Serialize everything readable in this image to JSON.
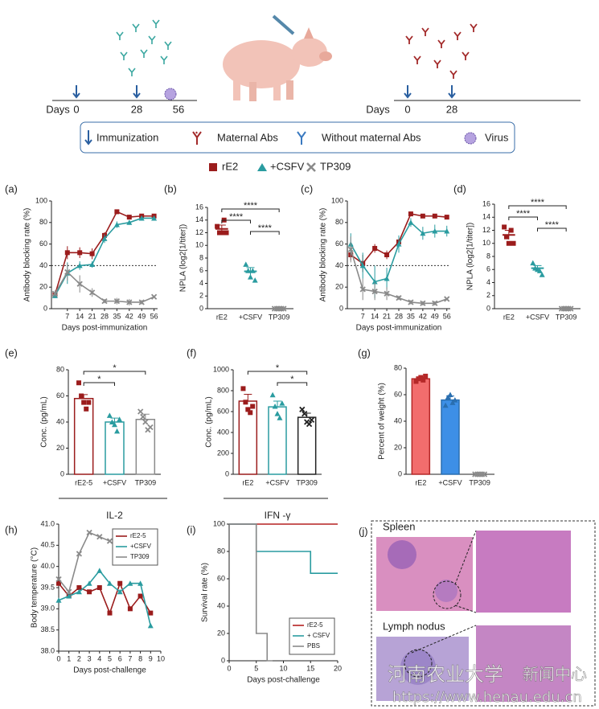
{
  "schematic": {
    "left_axis": [
      "Days",
      "0",
      "28",
      "56"
    ],
    "right_axis": [
      "Days",
      "0",
      "28"
    ],
    "legend": [
      "Immunization",
      "Maternal Abs",
      "Without maternal Abs",
      "Virus"
    ],
    "groups": [
      "rE2",
      "+CSFV",
      "TP309"
    ],
    "group_colors": [
      "#9b1c1c",
      "#2a9ca0",
      "#8a8a8a"
    ]
  },
  "chart_data": [
    {
      "type": "line",
      "panel": "(a)",
      "x": [
        0,
        7,
        14,
        21,
        28,
        35,
        42,
        49,
        56
      ],
      "xlim": [
        -2,
        58
      ],
      "xticks": [
        7,
        14,
        21,
        28,
        35,
        42,
        49,
        56
      ],
      "ylim": [
        0,
        100
      ],
      "yticks": [
        0,
        20,
        40,
        60,
        80,
        100
      ],
      "xlabel": "Days post-immunization",
      "ylabel": "Antibody blocking rate (%)",
      "reference_line": 40,
      "series": [
        {
          "color": "#9b1c1c",
          "values": [
            13,
            52,
            52,
            51,
            68,
            90,
            85,
            86,
            86
          ],
          "errors": [
            2,
            6,
            5,
            5,
            3,
            1,
            2,
            2,
            2
          ]
        },
        {
          "color": "#2a9ca0",
          "values": [
            12,
            33,
            40,
            41,
            65,
            78,
            80,
            84,
            84
          ],
          "errors": [
            2,
            10,
            4,
            3,
            4,
            3,
            2,
            2,
            2
          ]
        },
        {
          "color": "#8a8a8a",
          "values": [
            14,
            34,
            23,
            15,
            7,
            7,
            6,
            6,
            11
          ],
          "errors": [
            3,
            8,
            8,
            4,
            2,
            3,
            3,
            2,
            1
          ]
        }
      ]
    },
    {
      "type": "dot",
      "panel": "(b)",
      "categories": [
        "rE2",
        "+CSFV",
        "TP309"
      ],
      "values": [
        12.6,
        5.9,
        0
      ],
      "errors": [
        0.6,
        0.6,
        0
      ],
      "points": [
        [
          13,
          12,
          12,
          14,
          12
        ],
        [
          7,
          6,
          5,
          6,
          4.5
        ],
        [
          0,
          0,
          0,
          0,
          0
        ]
      ],
      "colors": [
        "#9b1c1c",
        "#2a9ca0",
        "#8a8a8a"
      ],
      "ylim": [
        0,
        16
      ],
      "yticks": [
        0,
        2,
        4,
        6,
        8,
        10,
        12,
        14,
        16
      ],
      "ylabel": "NPLA (log2[1/titer])",
      "significance": [
        "****",
        "****",
        "****"
      ]
    },
    {
      "type": "line",
      "panel": "(c)",
      "x": [
        0,
        7,
        14,
        21,
        28,
        35,
        42,
        49,
        56
      ],
      "xlim": [
        -2,
        58
      ],
      "xticks": [
        7,
        14,
        21,
        28,
        35,
        42,
        49,
        56
      ],
      "ylim": [
        0,
        100
      ],
      "yticks": [
        0,
        20,
        40,
        60,
        80,
        100
      ],
      "xlabel": "Days post-immunization",
      "ylabel": "Antibody blocking rate (%)",
      "reference_line": 40,
      "series": [
        {
          "color": "#9b1c1c",
          "values": [
            50,
            42,
            56,
            50,
            62,
            88,
            86,
            86,
            85
          ],
          "errors": [
            5,
            8,
            4,
            4,
            4,
            1,
            1,
            1,
            2
          ]
        },
        {
          "color": "#2a9ca0",
          "values": [
            60,
            40,
            25,
            28,
            60,
            80,
            70,
            72,
            72
          ],
          "errors": [
            10,
            12,
            15,
            10,
            8,
            4,
            6,
            6,
            5
          ]
        },
        {
          "color": "#8a8a8a",
          "values": [
            55,
            18,
            16,
            14,
            10,
            6,
            5,
            5,
            9
          ],
          "errors": [
            12,
            10,
            8,
            6,
            2,
            2,
            2,
            2,
            1
          ]
        }
      ]
    },
    {
      "type": "dot",
      "panel": "(d)",
      "categories": [
        "rE2",
        "+CSFV",
        "TP309"
      ],
      "values": [
        11.3,
        6.2,
        0
      ],
      "errors": [
        0.7,
        0.4,
        0
      ],
      "points": [
        [
          12.5,
          11,
          10,
          12,
          10
        ],
        [
          7,
          6.2,
          6,
          5.8,
          5.2
        ],
        [
          0,
          0,
          0,
          0,
          0
        ]
      ],
      "colors": [
        "#9b1c1c",
        "#2a9ca0",
        "#8a8a8a"
      ],
      "ylim": [
        0,
        16
      ],
      "yticks": [
        0,
        2,
        4,
        6,
        8,
        10,
        12,
        14,
        16
      ],
      "ylabel": "NPLA (log2[1/titer])",
      "significance": [
        "****",
        "****",
        "****"
      ]
    },
    {
      "type": "bar",
      "panel": "(e)",
      "categories": [
        "rE2-5",
        "+CSFV",
        "TP309"
      ],
      "values": [
        58,
        40,
        42
      ],
      "errors": [
        3,
        3,
        4
      ],
      "points": [
        [
          70,
          60,
          55,
          50,
          55
        ],
        [
          45,
          40,
          38,
          33,
          42
        ],
        [
          48,
          44,
          40,
          34,
          36
        ]
      ],
      "colors": [
        "#9b1c1c",
        "#2a9ca0",
        "#8a8a8a"
      ],
      "ylim": [
        0,
        80
      ],
      "yticks": [
        0,
        20,
        40,
        60,
        80
      ],
      "ylabel": "Conc. (pg/mL)",
      "group_label": "IL-2",
      "significance": [
        "*",
        "*"
      ]
    },
    {
      "type": "bar",
      "panel": "(f)",
      "categories": [
        "rE2",
        "+CSFV",
        "TP309"
      ],
      "values": [
        700,
        645,
        545
      ],
      "errors": [
        65,
        55,
        40
      ],
      "points": [
        [
          820,
          690,
          620,
          590,
          650
        ],
        [
          760,
          650,
          580,
          540,
          680
        ],
        [
          620,
          580,
          500,
          480,
          520
        ]
      ],
      "colors": [
        "#9b1c1c",
        "#2a9ca0",
        "#222222"
      ],
      "ylim": [
        0,
        1000
      ],
      "yticks": [
        0,
        200,
        400,
        600,
        800,
        1000
      ],
      "ylabel": "Conc. (pg/mL)",
      "group_label": "IFN -γ",
      "significance": [
        "*",
        "*"
      ]
    },
    {
      "type": "bar",
      "panel": "(g)",
      "categories": [
        "rE2",
        "+CSFV",
        "TP309"
      ],
      "values": [
        72,
        56,
        0
      ],
      "errors": [
        1,
        3,
        0
      ],
      "points": [
        [
          70,
          72,
          73,
          71,
          74
        ],
        [
          52,
          58,
          60,
          54,
          56
        ],
        [
          0,
          0,
          0,
          0,
          0
        ]
      ],
      "colors": [
        "#b52828",
        "#2a6fb0",
        "#8a8a8a"
      ],
      "fill_colors": [
        "#f26d6d",
        "#3d8fe6",
        "#8a8a8a"
      ],
      "ylim": [
        0,
        80
      ],
      "yticks": [
        0,
        20,
        40,
        60,
        80
      ],
      "ylabel": "Percent of weight (%)"
    },
    {
      "type": "line",
      "panel": "(h)",
      "x": [
        0,
        1,
        2,
        3,
        4,
        5,
        6,
        7,
        8,
        9
      ],
      "xlim": [
        0,
        10
      ],
      "xticks": [
        0,
        1,
        2,
        3,
        4,
        5,
        6,
        7,
        8,
        9,
        10
      ],
      "ylim": [
        38,
        41
      ],
      "yticks": [
        {
          "value": 38,
          "label": "38.0"
        },
        {
          "value": 38.5,
          "label": "38.5"
        },
        {
          "value": 39,
          "label": "39.0"
        },
        {
          "value": 39.5,
          "label": "39.5"
        },
        {
          "value": 40,
          "label": "40.0"
        },
        {
          "value": 40.5,
          "label": "40.5"
        },
        {
          "value": 41,
          "label": "41.0"
        }
      ],
      "xlabel": "Days post-challenge",
      "ylabel": "Body temperature (°C)",
      "legend": "upper right",
      "series": [
        {
          "name": "rE2-5",
          "color": "#9b1c1c",
          "values": [
            39.6,
            39.3,
            39.5,
            39.4,
            39.5,
            38.9,
            39.6,
            39.0,
            39.3,
            38.9
          ]
        },
        {
          "name": "+CSFV",
          "color": "#2a9ca0",
          "values": [
            39.2,
            39.3,
            39.4,
            39.6,
            39.9,
            39.6,
            39.4,
            39.6,
            39.6,
            38.6
          ]
        },
        {
          "name": "TP309",
          "color": "#8a8a8a",
          "values": [
            39.7,
            39.4,
            40.3,
            40.8,
            40.7,
            40.6,
            null,
            null,
            null,
            null
          ]
        }
      ]
    },
    {
      "type": "step",
      "panel": "(i)",
      "xlim": [
        0,
        20
      ],
      "xticks": [
        0,
        5,
        10,
        15,
        20
      ],
      "ylim": [
        0,
        100
      ],
      "yticks": [
        0,
        20,
        40,
        60,
        80,
        100
      ],
      "xlabel": "Days post-challenge",
      "ylabel": "Survival rate (%)",
      "legend": "lower right",
      "series": [
        {
          "name": "rE2-5",
          "color": "#b52020",
          "x": [
            0,
            20
          ],
          "values": [
            100,
            100
          ]
        },
        {
          "name": "+ CSFV",
          "color": "#2a9ca0",
          "x": [
            0,
            5,
            15,
            20
          ],
          "values": [
            100,
            80,
            64,
            64
          ]
        },
        {
          "name": "PBS",
          "color": "#8a8a8a",
          "x": [
            0,
            5,
            7,
            8
          ],
          "values": [
            100,
            20,
            0,
            0
          ]
        }
      ]
    }
  ],
  "micrographs": {
    "panel": "(j)",
    "labels": [
      "Spleen",
      "Lymph nodus"
    ]
  },
  "watermark": [
    "河南农业大学",
    "新闻中心",
    "https://www.henau.edu.cn"
  ]
}
